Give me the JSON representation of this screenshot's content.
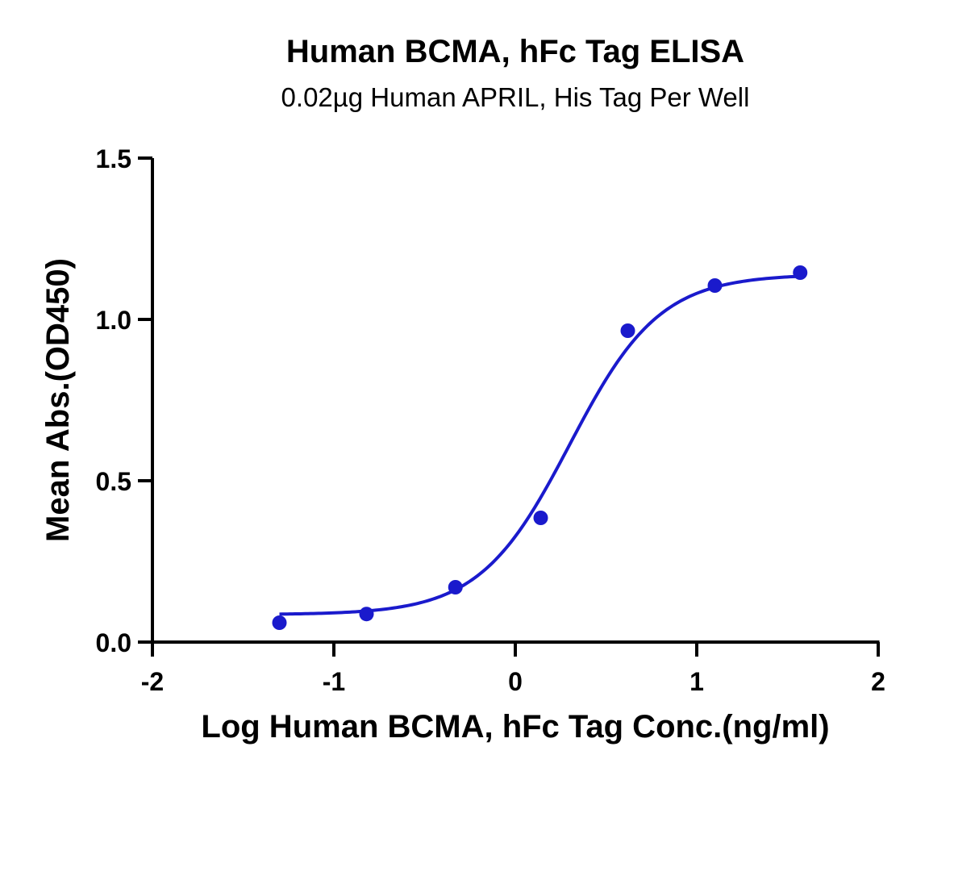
{
  "chart_data": {
    "type": "scatter",
    "title": "Human BCMA, hFc Tag ELISA",
    "subtitle": "0.02µg Human APRIL, His Tag Per Well",
    "xlabel": "Log Human BCMA, hFc Tag Conc.(ng/ml)",
    "ylabel": "Mean Abs.(OD450)",
    "xlim": [
      -2,
      2
    ],
    "ylim": [
      0,
      1.5
    ],
    "x_ticks": [
      -2,
      -1,
      0,
      1,
      2
    ],
    "x_tick_labels": [
      "-2",
      "-1",
      "0",
      "1",
      "2"
    ],
    "y_ticks": [
      0,
      0.5,
      1.0,
      1.5
    ],
    "y_tick_labels": [
      "0.0",
      "0.5",
      "1.0",
      "1.5"
    ],
    "grid": false,
    "series": [
      {
        "x": [
          -1.3,
          -0.82,
          -0.33,
          0.14,
          0.62,
          1.1,
          1.57
        ],
        "y": [
          0.06,
          0.087,
          0.17,
          0.385,
          0.965,
          1.105,
          1.145
        ],
        "color": "#1a1acc",
        "fit": "4PL sigmoidal curve"
      }
    ]
  }
}
